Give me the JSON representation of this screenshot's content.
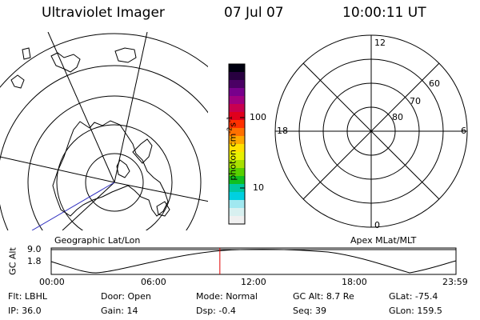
{
  "header": {
    "instrument": "Ultraviolet Imager",
    "date": "07 Jul 07",
    "time": "10:00:11 UT"
  },
  "colorbar": {
    "unit": "photon cm",
    "sup1": "-2",
    "s": "s",
    "sup2": "-1",
    "tick_high": "100",
    "tick_low": "10",
    "colors": [
      "#000010",
      "#280040",
      "#4a0064",
      "#78008c",
      "#a00080",
      "#c80050",
      "#e0001c",
      "#ff3000",
      "#ff7000",
      "#ffa800",
      "#ffe000",
      "#e8f000",
      "#a8e000",
      "#58d000",
      "#10c020",
      "#00c8a0",
      "#00d0e0",
      "#a0e8f0",
      "#d8f0f0",
      "#f0f0f0"
    ]
  },
  "left_panel": {
    "label": "Geographic Lat/Lon"
  },
  "right_panel": {
    "label": "Apex MLat/MLT",
    "mlt_12": "12",
    "mlt_18": "18",
    "mlt_6": "6",
    "mlt_0": "0",
    "lat_60": "60",
    "lat_70": "70",
    "lat_80": "80"
  },
  "altitude_plot": {
    "ylabel": "GC Alt",
    "y_top": "9.0",
    "y_bottom": "1.8",
    "x_ticks": [
      "00:00",
      "06:00",
      "12:00",
      "18:00",
      "23:59"
    ],
    "marker_hour": 10.0
  },
  "info": {
    "flt_label": "Flt:",
    "flt_value": "LBHL",
    "door_label": "Door:",
    "door_value": "Open",
    "mode_label": "Mode:",
    "mode_value": "Normal",
    "gcalt_label": "GC Alt:",
    "gcalt_value": "8.7 Re",
    "glat_label": "GLat:",
    "glat_value": "-75.4",
    "ip_label": "IP:",
    "ip_value": "36.0",
    "gain_label": "Gain:",
    "gain_value": "14",
    "dsp_label": "Dsp:",
    "dsp_value": "-0.4",
    "seq_label": "Seq:",
    "seq_value": "39",
    "glon_label": "GLon:",
    "glon_value": "159.5"
  }
}
